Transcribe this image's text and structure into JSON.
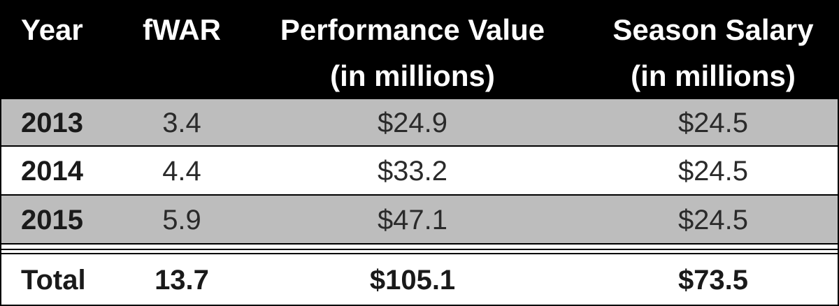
{
  "table": {
    "header": [
      [
        "Year"
      ],
      [
        "fWAR"
      ],
      [
        "Performance Value",
        "(in millions)"
      ],
      [
        "Season Salary",
        "(in millions)"
      ]
    ],
    "rows": [
      [
        "2013",
        "3.4",
        "$24.9",
        "$24.5"
      ],
      [
        "2014",
        "4.4",
        "$33.2",
        "$24.5"
      ],
      [
        "2015",
        "5.9",
        "$47.1",
        "$24.5"
      ]
    ],
    "total": [
      "Total",
      "13.7",
      "$105.1",
      "$73.5"
    ]
  }
}
